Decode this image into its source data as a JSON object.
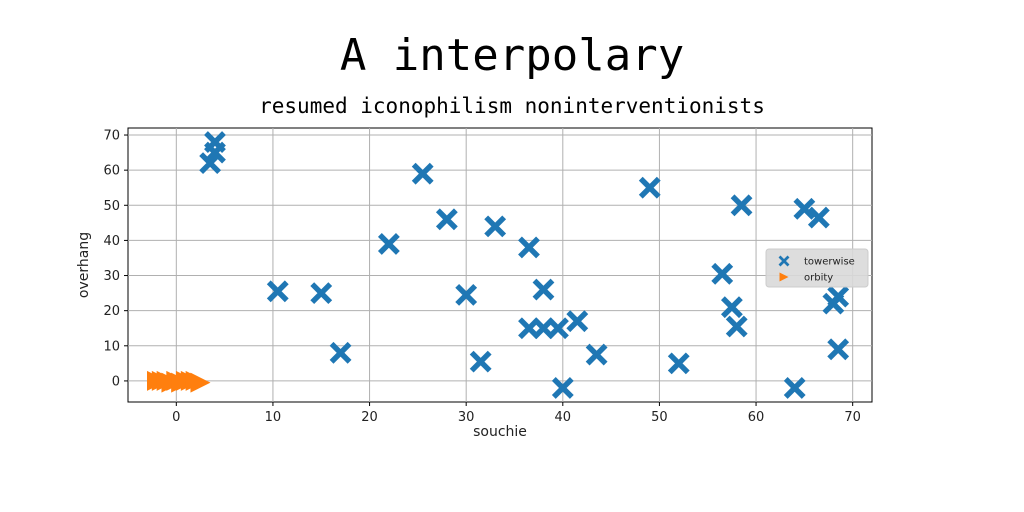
{
  "chart_data": {
    "type": "scatter",
    "title": "A interpolary",
    "subtitle": "resumed iconophilism noninterventionists",
    "xlabel": "souchie",
    "ylabel": "overhang",
    "xlim": [
      -5,
      72
    ],
    "ylim": [
      -6,
      72
    ],
    "xticks": [
      0,
      10,
      20,
      30,
      40,
      50,
      60,
      70
    ],
    "yticks": [
      0,
      10,
      20,
      30,
      40,
      50,
      60,
      70
    ],
    "grid": true,
    "legend_position": "right",
    "series": [
      {
        "name": "towerwise",
        "marker": "x-cross",
        "color": "#1f77b4",
        "points": [
          [
            4,
            68
          ],
          [
            4,
            65
          ],
          [
            3.5,
            62
          ],
          [
            10.5,
            25.5
          ],
          [
            15,
            25
          ],
          [
            17,
            8
          ],
          [
            22,
            39
          ],
          [
            25.5,
            59
          ],
          [
            28,
            46
          ],
          [
            30,
            24.5
          ],
          [
            31.5,
            5.5
          ],
          [
            33,
            44
          ],
          [
            36.5,
            38
          ],
          [
            36.5,
            15
          ],
          [
            38,
            26
          ],
          [
            38,
            15
          ],
          [
            39.5,
            15
          ],
          [
            40,
            -2
          ],
          [
            41.5,
            17
          ],
          [
            43.5,
            7.5
          ],
          [
            49,
            55
          ],
          [
            52,
            5
          ],
          [
            56.5,
            30.5
          ],
          [
            57.5,
            21
          ],
          [
            58,
            15.5
          ],
          [
            58.5,
            50
          ],
          [
            64,
            -2
          ],
          [
            65,
            49
          ],
          [
            66.5,
            46.5
          ],
          [
            68,
            22
          ],
          [
            68.5,
            24
          ],
          [
            68.5,
            9
          ]
        ]
      },
      {
        "name": "orbity",
        "marker": "triangle-right",
        "color": "#ff7f0e",
        "points": [
          [
            -2,
            0
          ],
          [
            -1.5,
            0
          ],
          [
            -1,
            0
          ],
          [
            -0.5,
            -0.5
          ],
          [
            0,
            0
          ],
          [
            0.5,
            -0.5
          ],
          [
            1,
            0
          ],
          [
            1.5,
            0
          ],
          [
            2,
            0
          ],
          [
            2.5,
            -0.5
          ]
        ]
      }
    ]
  }
}
